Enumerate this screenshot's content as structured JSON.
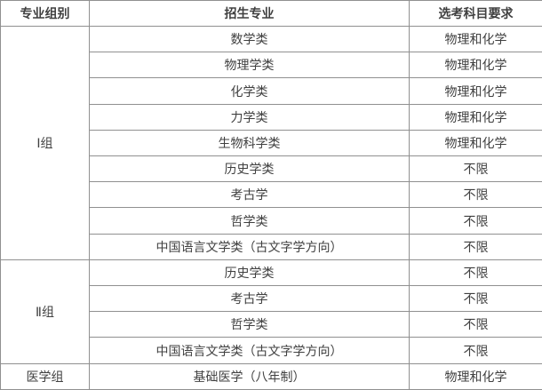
{
  "colors": {
    "text": "#404040",
    "border": "#909090",
    "background": "#ffffff"
  },
  "table": {
    "headers": {
      "group": "专业组别",
      "major": "招生专业",
      "requirement": "选考科目要求"
    },
    "groups": [
      {
        "group": "Ⅰ组",
        "rows": [
          {
            "major": "数学类",
            "requirement": "物理和化学"
          },
          {
            "major": "物理学类",
            "requirement": "物理和化学"
          },
          {
            "major": "化学类",
            "requirement": "物理和化学"
          },
          {
            "major": "力学类",
            "requirement": "物理和化学"
          },
          {
            "major": "生物科学类",
            "requirement": "物理和化学"
          },
          {
            "major": "历史学类",
            "requirement": "不限"
          },
          {
            "major": "考古学",
            "requirement": "不限"
          },
          {
            "major": "哲学类",
            "requirement": "不限"
          },
          {
            "major": "中国语言文学类（古文字学方向）",
            "requirement": "不限"
          }
        ]
      },
      {
        "group": "Ⅱ组",
        "rows": [
          {
            "major": "历史学类",
            "requirement": "不限"
          },
          {
            "major": "考古学",
            "requirement": "不限"
          },
          {
            "major": "哲学类",
            "requirement": "不限"
          },
          {
            "major": "中国语言文学类（古文字学方向）",
            "requirement": "不限"
          }
        ]
      },
      {
        "group": "医学组",
        "rows": [
          {
            "major": "基础医学（八年制）",
            "requirement": "物理和化学"
          }
        ]
      }
    ]
  }
}
